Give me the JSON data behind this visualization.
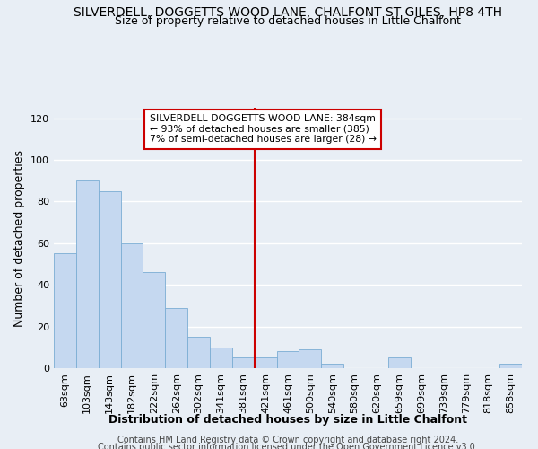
{
  "title": "SILVERDELL, DOGGETTS WOOD LANE, CHALFONT ST GILES, HP8 4TH",
  "subtitle": "Size of property relative to detached houses in Little Chalfont",
  "xlabel": "Distribution of detached houses by size in Little Chalfont",
  "ylabel": "Number of detached properties",
  "footnote1": "Contains HM Land Registry data © Crown copyright and database right 2024.",
  "footnote2": "Contains public sector information licensed under the Open Government Licence v3.0.",
  "categories": [
    "63sqm",
    "103sqm",
    "143sqm",
    "182sqm",
    "222sqm",
    "262sqm",
    "302sqm",
    "341sqm",
    "381sqm",
    "421sqm",
    "461sqm",
    "500sqm",
    "540sqm",
    "580sqm",
    "620sqm",
    "659sqm",
    "699sqm",
    "739sqm",
    "779sqm",
    "818sqm",
    "858sqm"
  ],
  "values": [
    55,
    90,
    85,
    60,
    46,
    29,
    15,
    10,
    5,
    5,
    8,
    9,
    2,
    0,
    0,
    5,
    0,
    0,
    0,
    0,
    2
  ],
  "bar_color": "#c5d8f0",
  "bar_edge_color": "#7badd4",
  "red_line_index": 8,
  "annotation_title": "SILVERDELL DOGGETTS WOOD LANE: 384sqm",
  "annotation_line1": "← 93% of detached houses are smaller (385)",
  "annotation_line2": "7% of semi-detached houses are larger (28) →",
  "annotation_box_color": "#cc0000",
  "red_line_color": "#cc0000",
  "ylim": [
    0,
    125
  ],
  "yticks": [
    0,
    20,
    40,
    60,
    80,
    100,
    120
  ],
  "background_color": "#e8eef5",
  "grid_color": "#ffffff",
  "title_fontsize": 10,
  "subtitle_fontsize": 9,
  "axis_label_fontsize": 9,
  "tick_fontsize": 8,
  "footnote_fontsize": 7
}
